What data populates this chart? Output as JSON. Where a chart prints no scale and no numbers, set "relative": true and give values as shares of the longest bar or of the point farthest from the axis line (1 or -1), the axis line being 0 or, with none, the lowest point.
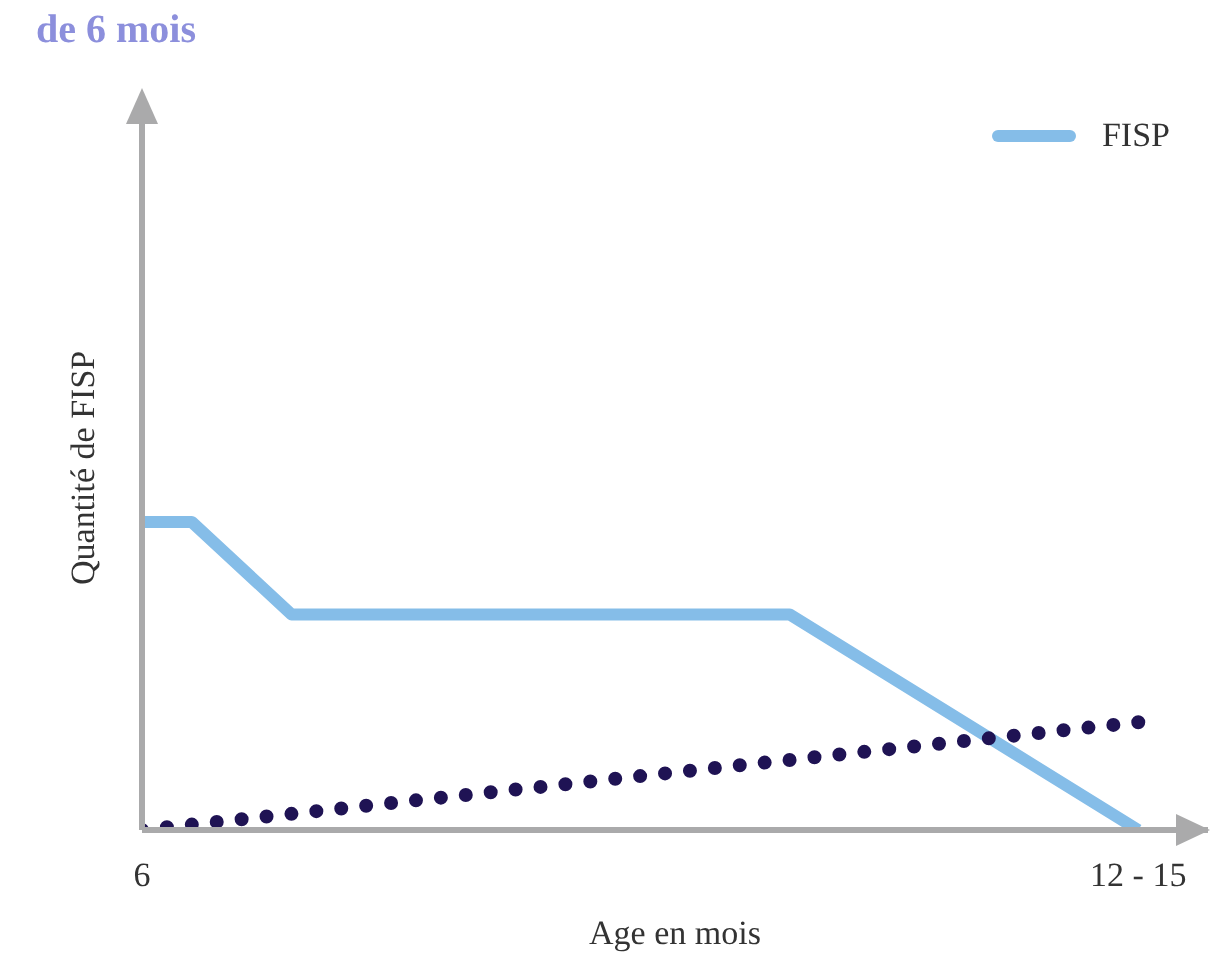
{
  "chart_data": {
    "type": "line",
    "title": "de 6 mois",
    "xlabel": "Age en mois",
    "ylabel": "Quantité de FISP",
    "relative": true,
    "categories": [
      "6",
      null,
      null,
      null,
      null,
      null,
      null,
      null,
      null,
      null,
      null,
      null,
      null,
      null,
      null,
      null,
      null,
      null,
      null,
      null,
      "12 - 15"
    ],
    "legend": "top right",
    "grid": false,
    "marker": "none",
    "series": [
      {
        "name": "FISP",
        "color": "#85bde8",
        "values": [
          1,
          1,
          null,
          0.7,
          null,
          null,
          null,
          null,
          null,
          null,
          null,
          null,
          null,
          0.7,
          null,
          null,
          null,
          null,
          null,
          null,
          0
        ],
        "line_style": "solid"
      },
      {
        "color": "#1f1354",
        "values": [
          0,
          null,
          null,
          null,
          null,
          null,
          null,
          null,
          null,
          null,
          null,
          null,
          null,
          null,
          null,
          null,
          null,
          null,
          null,
          null,
          0.35
        ],
        "line_style": "dotted"
      }
    ]
  }
}
